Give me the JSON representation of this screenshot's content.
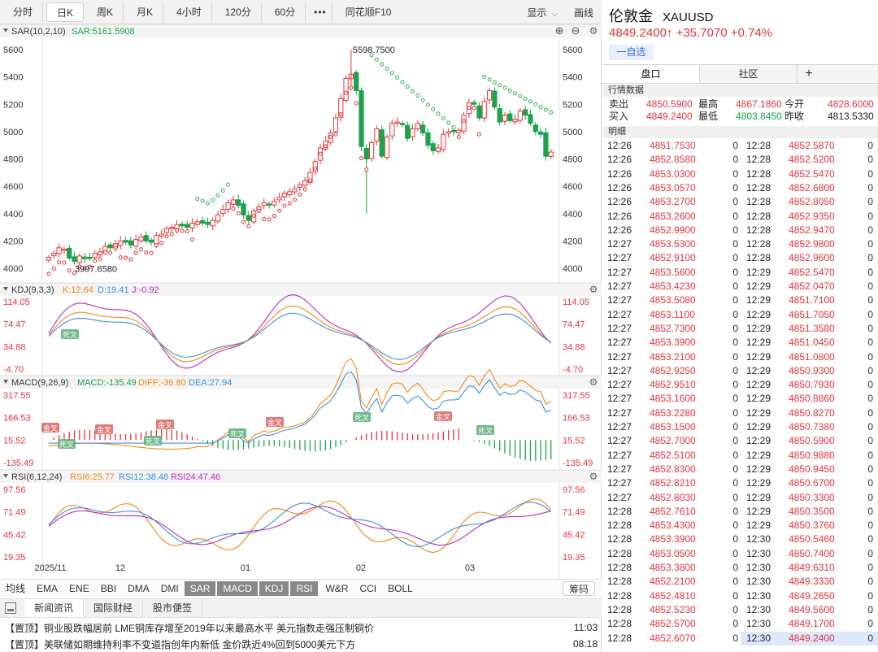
{
  "toolbar": {
    "tabs": [
      "分时",
      "日K",
      "周K",
      "月K",
      "4小时",
      "120分",
      "60分",
      "•••",
      "同花顺F10"
    ],
    "active_tab": "日K",
    "display": "显示",
    "draw": "画线"
  },
  "panels": {
    "sar": {
      "title": "SAR(10,2,10)",
      "value": "SAR:5161.5908",
      "axis": [
        "5600",
        "5400",
        "5200",
        "5000",
        "4800",
        "4600",
        "4400",
        "4200",
        "4000"
      ],
      "high_label": "5598.7500",
      "low_label": "3997.6580"
    },
    "kdj": {
      "title": "KDJ(9,3,3)",
      "k": "K:12.64",
      "d": "D:19.41",
      "j": "J:-0.92",
      "axis": [
        "114.05",
        "74.47",
        "34.88",
        "-4.70"
      ],
      "marks": [
        "死叉"
      ]
    },
    "macd": {
      "title": "MACD(9,26,9)",
      "macd": "MACD:-135.49",
      "diff": "DIFF:-39.80",
      "dea": "DEA:27.94",
      "axis": [
        "317.55",
        "166.53",
        "15.52",
        "-135.49"
      ],
      "gold": "金叉",
      "dead": "死叉"
    },
    "rsi": {
      "title": "RSI(6,12,24)",
      "r6": "RSI6:25.77",
      "r12": "RSI12:38.48",
      "r24": "RSI24:47.46",
      "axis": [
        "97.56",
        "71.49",
        "45.42",
        "19.35"
      ]
    }
  },
  "time_axis": [
    "2025/11",
    "12",
    "01",
    "02",
    "03"
  ],
  "colors": {
    "up": "#e5353a",
    "down": "#1aa34a",
    "k": "#f08a12",
    "d": "#3d8fe0",
    "j": "#b62cc1",
    "sar_up": "#e5353a",
    "sar_down": "#34b150"
  },
  "indicators": [
    "均线",
    "EMA",
    "ENE",
    "BBI",
    "DMA",
    "DMI",
    "SAR",
    "MACD",
    "KDJ",
    "RSI",
    "W&R",
    "CCI",
    "BOLL"
  ],
  "indicators_active": [
    "SAR",
    "MACD",
    "KDJ",
    "RSI"
  ],
  "indicator_button": "筹码",
  "news": {
    "tabs": [
      "新闻资讯",
      "国际财经",
      "股市便签"
    ],
    "items": [
      {
        "tag": "【置顶】",
        "text": "铜业股跌幅居前 LME铜库存增至2019年以来最高水平 美元指数走强压制铜价",
        "time": "11:03"
      },
      {
        "tag": "【置顶】",
        "text": "美联储如期维持利率不变道指创年内新低 金价跌近4%回到5000美元下方",
        "time": "08:18"
      }
    ]
  },
  "quote": {
    "name": "伦敦金",
    "code": "XAUUSD",
    "price_line": "4849.2400↑ +35.7070 +0.74%",
    "watch_label": "一自选",
    "tabs": [
      "盘口",
      "社区",
      "+"
    ],
    "market_header": "行情数据",
    "detail_header": "明细",
    "rows": [
      [
        {
          "l": "卖出",
          "v": "4850.5900",
          "c": "red"
        },
        {
          "l": "最高",
          "v": "4867.1860",
          "c": "red"
        },
        {
          "l": "今开",
          "v": "4828.6000",
          "c": "red"
        }
      ],
      [
        {
          "l": "买入",
          "v": "4849.2400",
          "c": "red"
        },
        {
          "l": "最低",
          "v": "4803.8450",
          "c": "grn"
        },
        {
          "l": "昨收",
          "v": "4813.5330",
          "c": ""
        }
      ]
    ],
    "trades_left": [
      [
        "12:26",
        "4851.7530",
        "0"
      ],
      [
        "12:26",
        "4852.8580",
        "0"
      ],
      [
        "12:26",
        "4853.0300",
        "0"
      ],
      [
        "12:26",
        "4853.0570",
        "0"
      ],
      [
        "12:26",
        "4853.2700",
        "0"
      ],
      [
        "12:26",
        "4853.2600",
        "0"
      ],
      [
        "12:26",
        "4852.9900",
        "0"
      ],
      [
        "12:27",
        "4853.5300",
        "0"
      ],
      [
        "12:27",
        "4852.9100",
        "0"
      ],
      [
        "12:27",
        "4853.5600",
        "0"
      ],
      [
        "12:27",
        "4853.4230",
        "0"
      ],
      [
        "12:27",
        "4853.5080",
        "0"
      ],
      [
        "12:27",
        "4853.1100",
        "0"
      ],
      [
        "12:27",
        "4852.7300",
        "0"
      ],
      [
        "12:27",
        "4853.3900",
        "0"
      ],
      [
        "12:27",
        "4853.2100",
        "0"
      ],
      [
        "12:27",
        "4852.9250",
        "0"
      ],
      [
        "12:27",
        "4852.9510",
        "0"
      ],
      [
        "12:27",
        "4853.1600",
        "0"
      ],
      [
        "12:27",
        "4853.2280",
        "0"
      ],
      [
        "12:27",
        "4853.1500",
        "0"
      ],
      [
        "12:27",
        "4852.7000",
        "0"
      ],
      [
        "12:27",
        "4852.5100",
        "0"
      ],
      [
        "12:27",
        "4852.8300",
        "0"
      ],
      [
        "12:27",
        "4852.8210",
        "0"
      ],
      [
        "12:27",
        "4852.8030",
        "0"
      ],
      [
        "12:28",
        "4852.7610",
        "0"
      ],
      [
        "12:28",
        "4853.4300",
        "0"
      ],
      [
        "12:28",
        "4853.3900",
        "0"
      ],
      [
        "12:28",
        "4853.0500",
        "0"
      ],
      [
        "12:28",
        "4853.3800",
        "0"
      ],
      [
        "12:28",
        "4852.2100",
        "0"
      ],
      [
        "12:28",
        "4852.4810",
        "0"
      ],
      [
        "12:28",
        "4852.5230",
        "0"
      ],
      [
        "12:28",
        "4852.5700",
        "0"
      ],
      [
        "12:28",
        "4852.6070",
        "0"
      ]
    ],
    "trades_right": [
      [
        "12:28",
        "4852.5870",
        "0"
      ],
      [
        "12:28",
        "4852.5200",
        "0"
      ],
      [
        "12:28",
        "4852.5470",
        "0"
      ],
      [
        "12:28",
        "4852.6800",
        "0"
      ],
      [
        "12:28",
        "4852.8050",
        "0"
      ],
      [
        "12:28",
        "4852.9350",
        "0"
      ],
      [
        "12:28",
        "4852.9470",
        "0"
      ],
      [
        "12:28",
        "4852.9800",
        "0"
      ],
      [
        "12:28",
        "4852.9600",
        "0"
      ],
      [
        "12:29",
        "4852.5470",
        "0"
      ],
      [
        "12:29",
        "4852.0470",
        "0"
      ],
      [
        "12:29",
        "4851.7100",
        "0"
      ],
      [
        "12:29",
        "4851.7050",
        "0"
      ],
      [
        "12:29",
        "4851.3580",
        "0"
      ],
      [
        "12:29",
        "4851.0450",
        "0"
      ],
      [
        "12:29",
        "4851.0800",
        "0"
      ],
      [
        "12:29",
        "4850.9300",
        "0"
      ],
      [
        "12:29",
        "4850.7930",
        "0"
      ],
      [
        "12:29",
        "4850.8860",
        "0"
      ],
      [
        "12:29",
        "4850.8270",
        "0"
      ],
      [
        "12:29",
        "4850.7380",
        "0"
      ],
      [
        "12:29",
        "4850.5900",
        "0"
      ],
      [
        "12:29",
        "4850.9880",
        "0"
      ],
      [
        "12:29",
        "4850.9450",
        "0"
      ],
      [
        "12:29",
        "4850.6700",
        "0"
      ],
      [
        "12:29",
        "4850.3300",
        "0"
      ],
      [
        "12:29",
        "4850.3500",
        "0"
      ],
      [
        "12:29",
        "4850.3760",
        "0"
      ],
      [
        "12:30",
        "4850.5460",
        "0"
      ],
      [
        "12:30",
        "4850.7400",
        "0"
      ],
      [
        "12:30",
        "4849.6310",
        "0"
      ],
      [
        "12:30",
        "4849.3330",
        "0"
      ],
      [
        "12:30",
        "4849.2650",
        "0"
      ],
      [
        "12:30",
        "4849.5600",
        "0"
      ],
      [
        "12:30",
        "4849.1700",
        "0"
      ],
      [
        "12:30",
        "4849.2400",
        "0"
      ]
    ]
  },
  "chart_data": {
    "type": "line",
    "title": "SAR(10,2,10)",
    "x": [
      "2025/11",
      "12",
      "01",
      "02",
      "03"
    ],
    "candles_close": [
      4080,
      4110,
      4150,
      4140,
      4075,
      4050,
      4090,
      4070,
      4075,
      4110,
      4120,
      4160,
      4150,
      4180,
      4200,
      4190,
      4170,
      4210,
      4230,
      4200,
      4190,
      4240,
      4250,
      4290,
      4300,
      4320,
      4310,
      4300,
      4330,
      4340,
      4330,
      4320,
      4350,
      4390,
      4430,
      4480,
      4500,
      4460,
      4390,
      4350,
      4420,
      4450,
      4480,
      4470,
      4490,
      4520,
      4550,
      4560,
      4580,
      4610,
      4640,
      4700,
      4780,
      4880,
      4930,
      4990,
      5100,
      5240,
      5390,
      5420,
      5300,
      4890,
      4800,
      4920,
      5020,
      4820,
      4960,
      5060,
      5070,
      5050,
      4950,
      5020,
      5060,
      4990,
      4900,
      4860,
      4880,
      4980,
      5000,
      5000,
      5010,
      5120,
      5210,
      5200,
      5100,
      5220,
      5300,
      5180,
      5070,
      5120,
      5080,
      5090,
      5150,
      5120,
      5060,
      5000,
      4980,
      4820,
      4850
    ],
    "sar_last": 5161.5908,
    "high": 5598.75,
    "low": 3997.658,
    "kdj_last": {
      "K": 12.64,
      "D": 19.41,
      "J": -0.92
    },
    "macd_last": {
      "MACD": -135.49,
      "DIFF": -39.8,
      "DEA": 27.94
    },
    "rsi_last": {
      "RSI6": 25.77,
      "RSI12": 38.48,
      "RSI24": 47.46
    }
  }
}
